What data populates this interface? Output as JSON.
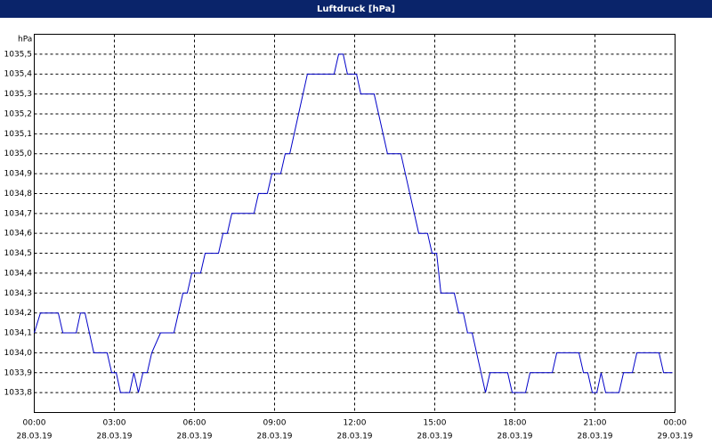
{
  "chart_data": {
    "type": "line",
    "title": "Luftdruck [hPa]",
    "y_unit": "hPa",
    "x": [
      0,
      0.23,
      0.9,
      1.07,
      1.57,
      1.73,
      1.9,
      2.23,
      2.73,
      2.9,
      3.07,
      3.23,
      3.57,
      3.73,
      3.9,
      4.07,
      4.23,
      4.4,
      4.73,
      5.23,
      5.57,
      5.73,
      5.9,
      6.23,
      6.4,
      6.9,
      7.07,
      7.23,
      7.4,
      8.23,
      8.4,
      8.73,
      8.9,
      9.23,
      9.4,
      9.57,
      10.23,
      11.23,
      11.4,
      11.57,
      11.73,
      12.07,
      12.23,
      12.73,
      13.23,
      13.73,
      14.4,
      14.73,
      14.9,
      15.07,
      15.23,
      15.73,
      15.9,
      16.07,
      16.23,
      16.4,
      16.9,
      17.07,
      17.73,
      17.9,
      18.4,
      18.57,
      19.4,
      19.57,
      20.4,
      20.57,
      20.73,
      20.9,
      21.07,
      21.23,
      21.4,
      21.9,
      22.07,
      22.4,
      22.57,
      23.4,
      23.57,
      23.9
    ],
    "series": [
      {
        "color": "#0000c8",
        "values": [
          1034.1,
          1034.2,
          1034.2,
          1034.1,
          1034.1,
          1034.2,
          1034.2,
          1034.0,
          1034.0,
          1033.9,
          1033.9,
          1033.8,
          1033.8,
          1033.9,
          1033.8,
          1033.9,
          1033.9,
          1034.0,
          1034.1,
          1034.1,
          1034.3,
          1034.3,
          1034.4,
          1034.4,
          1034.5,
          1034.5,
          1034.6,
          1034.6,
          1034.7,
          1034.7,
          1034.8,
          1034.8,
          1034.9,
          1034.9,
          1035.0,
          1035.0,
          1035.4,
          1035.4,
          1035.5,
          1035.5,
          1035.4,
          1035.4,
          1035.3,
          1035.3,
          1035.0,
          1035.0,
          1034.6,
          1034.6,
          1034.5,
          1034.5,
          1034.3,
          1034.3,
          1034.2,
          1034.2,
          1034.1,
          1034.1,
          1033.8,
          1033.9,
          1033.9,
          1033.8,
          1033.8,
          1033.9,
          1033.9,
          1034.0,
          1034.0,
          1033.9,
          1033.9,
          1033.8,
          1033.8,
          1033.9,
          1033.8,
          1033.8,
          1033.9,
          1033.9,
          1034.0,
          1034.0,
          1033.9,
          1033.9
        ]
      }
    ],
    "xlim": [
      0,
      24
    ],
    "xticks": [
      {
        "value": 0,
        "label": "00:00"
      },
      {
        "value": 3,
        "label": "03:00"
      },
      {
        "value": 6,
        "label": "06:00"
      },
      {
        "value": 9,
        "label": "09:00"
      },
      {
        "value": 12,
        "label": "12:00"
      },
      {
        "value": 15,
        "label": "15:00"
      },
      {
        "value": 18,
        "label": "18:00"
      },
      {
        "value": 21,
        "label": "21:00"
      },
      {
        "value": 24,
        "label": "00:00"
      }
    ],
    "xtick_dates": [
      "28.03.19",
      "28.03.19",
      "28.03.19",
      "28.03.19",
      "28.03.19",
      "28.03.19",
      "28.03.19",
      "28.03.19",
      "29.03.19"
    ],
    "ylim": [
      1033.7,
      1035.6
    ],
    "yticks": [
      {
        "value": 1033.8,
        "label": "1033,8"
      },
      {
        "value": 1033.9,
        "label": "1033,9"
      },
      {
        "value": 1034.0,
        "label": "1034,0"
      },
      {
        "value": 1034.1,
        "label": "1034,1"
      },
      {
        "value": 1034.2,
        "label": "1034,2"
      },
      {
        "value": 1034.3,
        "label": "1034,3"
      },
      {
        "value": 1034.4,
        "label": "1034,4"
      },
      {
        "value": 1034.5,
        "label": "1034,5"
      },
      {
        "value": 1034.6,
        "label": "1034,6"
      },
      {
        "value": 1034.7,
        "label": "1034,7"
      },
      {
        "value": 1034.8,
        "label": "1034,8"
      },
      {
        "value": 1034.9,
        "label": "1034,9"
      },
      {
        "value": 1035.0,
        "label": "1035,0"
      },
      {
        "value": 1035.1,
        "label": "1035,1"
      },
      {
        "value": 1035.2,
        "label": "1035,2"
      },
      {
        "value": 1035.3,
        "label": "1035,3"
      },
      {
        "value": 1035.4,
        "label": "1035,4"
      },
      {
        "value": 1035.5,
        "label": "1035,5"
      }
    ],
    "grid": true
  }
}
